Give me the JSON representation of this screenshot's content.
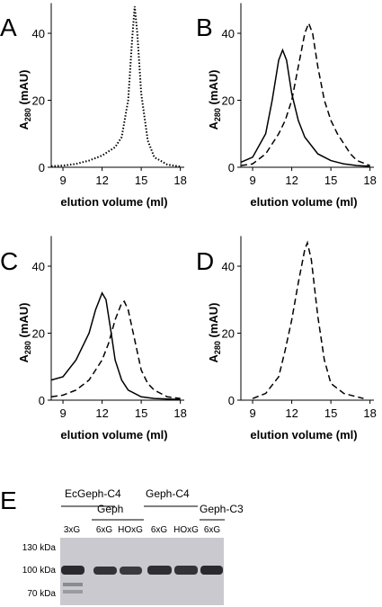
{
  "chart_data": [
    {
      "type": "line",
      "panel": "A",
      "xlabel": "elution volume (ml)",
      "ylabel": {
        "main": "A",
        "sub": "280",
        "unit": "(mAU)"
      },
      "xlim": [
        8.1,
        18.3
      ],
      "xticks": [
        9,
        12,
        15,
        18
      ],
      "ylim": [
        0,
        49
      ],
      "yticks": [
        0,
        20,
        40
      ],
      "series": [
        {
          "style": "dotted",
          "color": "#000000",
          "x": [
            8.1,
            9,
            10,
            11,
            12,
            13,
            13.5,
            14,
            14.3,
            14.5,
            14.7,
            15,
            15.5,
            16,
            17,
            18
          ],
          "values": [
            0.3,
            0.5,
            1,
            2,
            3.5,
            6,
            9,
            20,
            38,
            48,
            40,
            22,
            8,
            3,
            0.8,
            0.2
          ]
        }
      ]
    },
    {
      "type": "line",
      "panel": "B",
      "xlabel": "elution volume (ml)",
      "ylabel": {
        "main": "A",
        "sub": "280",
        "unit": "(mAU)"
      },
      "xlim": [
        8.1,
        18.3
      ],
      "xticks": [
        9,
        12,
        15,
        18
      ],
      "ylim": [
        0,
        49
      ],
      "yticks": [
        0,
        20,
        40
      ],
      "series": [
        {
          "style": "solid",
          "color": "#000000",
          "x": [
            8.1,
            9,
            10,
            10.5,
            11,
            11.3,
            11.6,
            12,
            12.5,
            13,
            14,
            15,
            16,
            17,
            18
          ],
          "values": [
            1.5,
            3,
            10,
            20,
            32,
            35,
            32,
            22,
            14,
            9,
            4,
            2,
            1,
            0.5,
            0.3
          ]
        },
        {
          "style": "dashed",
          "color": "#000000",
          "x": [
            8.1,
            9,
            10,
            11,
            11.5,
            12,
            12.5,
            13,
            13.3,
            13.6,
            14,
            14.5,
            15,
            15.5,
            16,
            16.5,
            17,
            18
          ],
          "values": [
            0.5,
            1,
            4,
            10,
            14,
            20,
            30,
            40,
            43,
            40,
            30,
            20,
            14,
            10,
            7,
            4,
            2,
            0.5
          ]
        }
      ]
    },
    {
      "type": "line",
      "panel": "C",
      "xlabel": "elution volume (ml)",
      "ylabel": {
        "main": "A",
        "sub": "280",
        "unit": "(mAU)"
      },
      "xlim": [
        8.1,
        18.3
      ],
      "xticks": [
        9,
        12,
        15,
        18
      ],
      "ylim": [
        0,
        49
      ],
      "yticks": [
        0,
        20,
        40
      ],
      "series": [
        {
          "style": "solid",
          "color": "#000000",
          "x": [
            8.1,
            9,
            10,
            11,
            11.5,
            12,
            12.3,
            12.7,
            13,
            13.5,
            14,
            15,
            16,
            18
          ],
          "values": [
            6,
            7,
            12,
            20,
            27,
            32,
            30,
            20,
            12,
            6,
            3,
            1,
            0.5,
            0.2
          ]
        },
        {
          "style": "dashed",
          "color": "#000000",
          "x": [
            8.1,
            9,
            10,
            11,
            12,
            12.5,
            13,
            13.5,
            13.7,
            14,
            14.5,
            15,
            15.5,
            16,
            17,
            18
          ],
          "values": [
            1,
            1.5,
            3,
            6,
            12,
            17,
            24,
            29,
            29.5,
            27,
            18,
            9,
            5,
            3,
            1,
            0.5
          ]
        }
      ]
    },
    {
      "type": "line",
      "panel": "D",
      "xlabel": "elution volume (ml)",
      "ylabel": {
        "main": "A",
        "sub": "280",
        "unit": "(mAU)"
      },
      "xlim": [
        8.1,
        18.3
      ],
      "xticks": [
        9,
        12,
        15,
        18
      ],
      "ylim": [
        0,
        49
      ],
      "yticks": [
        0,
        20,
        40
      ],
      "series": [
        {
          "style": "dashed",
          "color": "#000000",
          "x": [
            9,
            10,
            11,
            11.5,
            12,
            12.5,
            13,
            13.2,
            13.5,
            14,
            14.5,
            15,
            16,
            17,
            17.5
          ],
          "values": [
            0.5,
            2,
            7,
            15,
            24,
            35,
            45,
            47,
            42,
            25,
            12,
            5,
            2,
            1,
            0.5
          ]
        }
      ]
    }
  ],
  "gel": {
    "panel": "E",
    "groups": [
      "EcGeph-C4",
      "Geph",
      "Geph-C4",
      "Geph-C3"
    ],
    "lanes": [
      "3xG",
      "6xG",
      "HOxG",
      "6xG",
      "HOxG",
      "6xG"
    ],
    "markers": [
      "130 kDa",
      "100 kDa",
      "70 kDa"
    ]
  }
}
